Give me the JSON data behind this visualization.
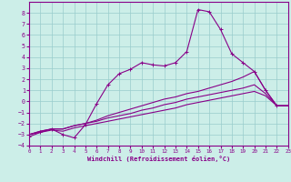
{
  "background_color": "#cceee8",
  "grid_color": "#99cccc",
  "line_color": "#880088",
  "xlabel": "Windchill (Refroidissement éolien,°C)",
  "xlim": [
    0,
    23
  ],
  "ylim": [
    -4,
    9
  ],
  "xticks": [
    0,
    1,
    2,
    3,
    4,
    5,
    6,
    7,
    8,
    9,
    10,
    11,
    12,
    13,
    14,
    15,
    16,
    17,
    18,
    19,
    20,
    21,
    22,
    23
  ],
  "yticks": [
    -4,
    -3,
    -2,
    -1,
    0,
    1,
    2,
    3,
    4,
    5,
    6,
    7,
    8
  ],
  "series": [
    {
      "x": [
        0,
        1,
        2,
        3,
        4,
        5,
        6,
        7,
        8,
        9,
        10,
        11,
        12,
        13,
        14,
        15,
        16,
        17,
        18,
        19,
        20,
        21,
        22,
        23
      ],
      "y": [
        -3.2,
        -2.8,
        -2.5,
        -3.0,
        -3.3,
        -2.1,
        -0.2,
        1.5,
        2.5,
        2.9,
        3.5,
        3.3,
        3.2,
        3.5,
        4.5,
        8.3,
        8.1,
        6.5,
        4.3,
        3.5,
        2.7,
        1.0,
        -0.4,
        -0.4
      ],
      "marker": true
    },
    {
      "x": [
        0,
        1,
        2,
        3,
        4,
        5,
        6,
        7,
        8,
        9,
        10,
        11,
        12,
        13,
        14,
        15,
        16,
        17,
        18,
        19,
        20,
        21,
        22,
        23
      ],
      "y": [
        -3.0,
        -2.7,
        -2.5,
        -2.5,
        -2.2,
        -2.0,
        -1.7,
        -1.3,
        -1.0,
        -0.7,
        -0.4,
        -0.1,
        0.2,
        0.4,
        0.7,
        0.9,
        1.2,
        1.5,
        1.8,
        2.2,
        2.7,
        1.0,
        -0.4,
        -0.4
      ],
      "marker": false
    },
    {
      "x": [
        0,
        1,
        2,
        3,
        4,
        5,
        6,
        7,
        8,
        9,
        10,
        11,
        12,
        13,
        14,
        15,
        16,
        17,
        18,
        19,
        20,
        21,
        22,
        23
      ],
      "y": [
        -3.0,
        -2.7,
        -2.5,
        -2.5,
        -2.2,
        -2.0,
        -1.8,
        -1.5,
        -1.3,
        -1.1,
        -0.8,
        -0.6,
        -0.3,
        -0.1,
        0.2,
        0.4,
        0.6,
        0.8,
        1.0,
        1.2,
        1.5,
        0.7,
        -0.4,
        -0.4
      ],
      "marker": false
    },
    {
      "x": [
        0,
        1,
        2,
        3,
        4,
        5,
        6,
        7,
        8,
        9,
        10,
        11,
        12,
        13,
        14,
        15,
        16,
        17,
        18,
        19,
        20,
        21,
        22,
        23
      ],
      "y": [
        -3.0,
        -2.8,
        -2.6,
        -2.7,
        -2.4,
        -2.2,
        -2.0,
        -1.8,
        -1.6,
        -1.4,
        -1.2,
        -1.0,
        -0.8,
        -0.6,
        -0.3,
        -0.1,
        0.1,
        0.3,
        0.5,
        0.7,
        0.9,
        0.5,
        -0.4,
        -0.4
      ],
      "marker": false
    }
  ],
  "figwidth": 3.2,
  "figheight": 2.0,
  "dpi": 100
}
